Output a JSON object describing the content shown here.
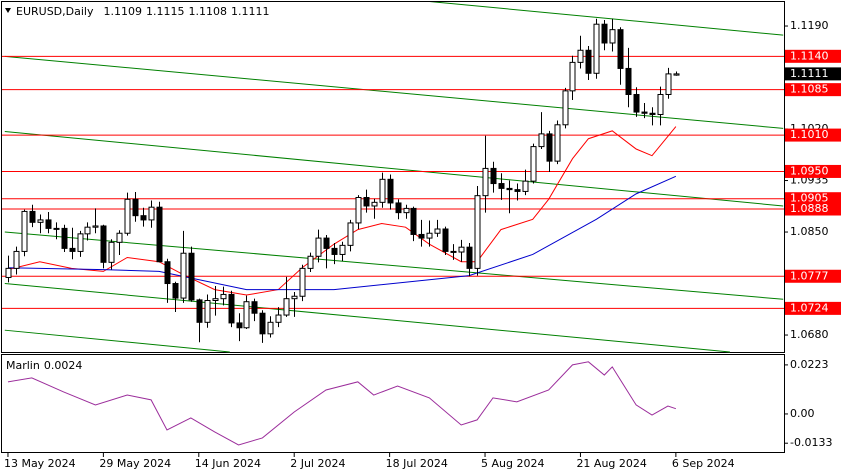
{
  "chart_data": [
    {
      "type": "candlestick",
      "title": "EURUSD,Daily",
      "categories": [
        "13 May 2024",
        null,
        null,
        null,
        null,
        null,
        null,
        null,
        null,
        null,
        null,
        null,
        "29 May 2024",
        null,
        null,
        null,
        null,
        null,
        null,
        null,
        null,
        null,
        null,
        null,
        "14 Jun 2024",
        null,
        null,
        null,
        null,
        null,
        null,
        null,
        null,
        null,
        null,
        null,
        "2 Jul 2024",
        null,
        null,
        null,
        null,
        null,
        null,
        null,
        null,
        null,
        null,
        null,
        "18 Jul 2024",
        null,
        null,
        null,
        null,
        null,
        null,
        null,
        null,
        null,
        null,
        null,
        "5 Aug 2024",
        null,
        null,
        null,
        null,
        null,
        null,
        null,
        null,
        null,
        null,
        null,
        "21 Aug 2024",
        null,
        null,
        null,
        null,
        null,
        null,
        null,
        null,
        null,
        null,
        null,
        "6 Sep 2024"
      ],
      "open": [
        1.0775,
        1.079,
        1.0818,
        1.0884,
        1.0866,
        1.087,
        1.0856,
        1.0856,
        1.0823,
        1.0818,
        1.0847,
        1.0858,
        1.086,
        1.08,
        1.0833,
        1.0848,
        1.0904,
        1.0877,
        1.087,
        1.0891,
        1.0801,
        1.0765,
        1.0741,
        1.0815,
        1.0738,
        1.0701,
        1.0737,
        1.074,
        1.0747,
        1.07,
        1.0692,
        1.0735,
        1.0716,
        1.0682,
        1.0701,
        1.0713,
        1.074,
        1.0744,
        1.079,
        1.081,
        1.084,
        1.0823,
        1.0813,
        1.0828,
        1.0865,
        1.0907,
        1.0893,
        1.0899,
        1.0937,
        1.0898,
        1.0882,
        1.0889,
        1.0846,
        1.084,
        1.0848,
        1.0855,
        1.0818,
        1.0817,
        1.0825,
        1.079,
        1.091,
        1.0955,
        1.093,
        1.0922,
        1.092,
        1.0917,
        1.0934,
        1.0991,
        1.1012,
        1.0967,
        1.1027,
        1.1083,
        1.113,
        1.115,
        1.1112,
        1.1193,
        1.1162,
        1.1184,
        1.112,
        1.1077,
        1.1048,
        1.1046,
        1.1044,
        1.1077,
        1.1109
      ],
      "high": [
        1.0811,
        1.0826,
        1.0887,
        1.0895,
        1.0879,
        1.0883,
        1.0866,
        1.0862,
        1.0857,
        1.0852,
        1.0866,
        1.0889,
        1.0862,
        1.0838,
        1.0853,
        1.0915,
        1.0916,
        1.089,
        1.0902,
        1.09,
        1.0806,
        1.0768,
        1.0852,
        1.0826,
        1.074,
        1.0747,
        1.0761,
        1.076,
        1.0753,
        1.0716,
        1.0745,
        1.074,
        1.0721,
        1.0711,
        1.0726,
        1.0776,
        1.0751,
        1.0796,
        1.0816,
        1.0854,
        1.0845,
        1.0832,
        1.0834,
        1.087,
        1.0911,
        1.092,
        1.0905,
        1.0948,
        1.0945,
        1.0904,
        1.0895,
        1.0892,
        1.087,
        1.0869,
        1.087,
        1.0859,
        1.083,
        1.0837,
        1.0832,
        1.0926,
        1.1009,
        1.0966,
        1.0947,
        1.0935,
        1.093,
        1.0953,
        1.0996,
        1.1048,
        1.1017,
        1.1034,
        1.1088,
        1.1141,
        1.1174,
        1.1157,
        1.1202,
        1.12,
        1.1202,
        1.1188,
        1.1154,
        1.1089,
        1.1063,
        1.1056,
        1.109,
        1.1121,
        1.1115
      ],
      "low": [
        1.0767,
        1.078,
        1.081,
        1.0858,
        1.0848,
        1.0848,
        1.0838,
        1.0817,
        1.0805,
        1.0809,
        1.0836,
        1.0848,
        1.079,
        1.0788,
        1.0812,
        1.0844,
        1.0867,
        1.0859,
        1.0857,
        1.08,
        1.0733,
        1.0718,
        1.0733,
        1.0735,
        1.0668,
        1.0692,
        1.0712,
        1.0729,
        1.0693,
        1.067,
        1.069,
        1.0703,
        1.0667,
        1.0676,
        1.0693,
        1.071,
        1.071,
        1.0736,
        1.0784,
        1.08,
        1.079,
        1.0797,
        1.0802,
        1.0818,
        1.0855,
        1.0882,
        1.0872,
        1.089,
        1.0887,
        1.0871,
        1.0872,
        1.0835,
        1.0826,
        1.0826,
        1.0842,
        1.0812,
        1.0804,
        1.0801,
        1.0777,
        1.0778,
        1.0882,
        1.0915,
        1.0903,
        1.0881,
        1.0902,
        1.0911,
        1.093,
        1.0987,
        1.0949,
        1.0962,
        1.1021,
        1.1068,
        1.112,
        1.1101,
        1.1103,
        1.115,
        1.1148,
        1.1093,
        1.1056,
        1.104,
        1.1038,
        1.1026,
        1.1026,
        1.107,
        1.1108
      ],
      "close": [
        1.079,
        1.0818,
        1.0884,
        1.0866,
        1.087,
        1.0856,
        1.0856,
        1.0823,
        1.0818,
        1.0847,
        1.0858,
        1.086,
        1.08,
        1.0833,
        1.0848,
        1.0904,
        1.0877,
        1.087,
        1.0891,
        1.0801,
        1.0765,
        1.0741,
        1.0815,
        1.0738,
        1.0701,
        1.0737,
        1.074,
        1.0747,
        1.07,
        1.0692,
        1.0735,
        1.0716,
        1.0682,
        1.0701,
        1.0713,
        1.074,
        1.0744,
        1.079,
        1.081,
        1.084,
        1.0823,
        1.0813,
        1.0828,
        1.0865,
        1.0907,
        1.0893,
        1.0899,
        1.0937,
        1.0898,
        1.0882,
        1.0889,
        1.0846,
        1.084,
        1.0848,
        1.0855,
        1.0818,
        1.0817,
        1.0825,
        1.079,
        1.091,
        1.0955,
        1.093,
        1.0922,
        1.092,
        1.0917,
        1.0934,
        1.0991,
        1.1012,
        1.0967,
        1.1027,
        1.1083,
        1.113,
        1.115,
        1.1112,
        1.1193,
        1.1162,
        1.1184,
        1.112,
        1.1077,
        1.1048,
        1.1046,
        1.1044,
        1.1077,
        1.1111,
        1.1111
      ],
      "color_up": "#ffffff",
      "color_down": "#000000",
      "xlim": [
        -0.75,
        97.6
      ],
      "ylim": [
        1.0652,
        1.1228
      ],
      "yticks": [
        {
          "value": 1.119,
          "label": "1.1190"
        },
        {
          "value": 1.102,
          "label": "1.1020"
        },
        1.0935,
        {
          "value": 1.085,
          "label": "1.0850"
        },
        {
          "value": 1.068,
          "label": "1.0680"
        }
      ],
      "levels": {
        "color": "#ff0000",
        "values": [
          1.114,
          1.1085,
          1.101,
          1.095,
          1.0905,
          1.0888,
          1.0777,
          1.0724
        ],
        "value_labels": [
          "1.1140",
          "1.1085",
          "1.1010",
          "1.0950",
          "1.0905",
          "1.0888",
          "1.0777",
          "1.0724"
        ]
      },
      "moving_averages": [
        {
          "color": "#ff0000",
          "x": [
            0,
            4,
            8,
            12,
            15,
            19,
            22,
            26,
            30,
            34,
            37,
            41,
            44,
            47,
            50,
            53,
            57,
            59,
            62,
            66,
            68,
            71,
            73,
            76,
            79,
            81,
            84
          ],
          "values": [
            1.0788,
            1.0801,
            1.079,
            1.0785,
            1.0808,
            1.0801,
            1.078,
            1.0755,
            1.0746,
            1.0755,
            1.0791,
            1.083,
            1.0854,
            1.0864,
            1.0858,
            1.083,
            1.0801,
            1.0801,
            1.0854,
            1.0871,
            1.0904,
            1.0971,
            1.1004,
            1.1017,
            1.0987,
            1.0976,
            1.1024
          ]
        },
        {
          "color": "#0000cd",
          "x": [
            0,
            12,
            19,
            30,
            41,
            58,
            66,
            74,
            79,
            84
          ],
          "values": [
            1.0791,
            1.0788,
            1.0785,
            1.0755,
            1.0755,
            1.0778,
            1.0813,
            1.0871,
            1.0913,
            1.0942
          ]
        }
      ],
      "trendlines": {
        "color": "#008000",
        "lines": [
          {
            "x": [
              51.8,
              97.5
            ],
            "values": [
              1.1232,
              1.1175
            ]
          },
          {
            "x": [
              -0.4,
              97.5
            ],
            "values": [
              1.114,
              1.1021
            ]
          },
          {
            "x": [
              -0.4,
              97.5
            ],
            "values": [
              1.1016,
              1.0893
            ]
          },
          {
            "x": [
              -0.4,
              97.5
            ],
            "values": [
              1.085,
              1.0739
            ]
          },
          {
            "x": [
              -0.4,
              90.8
            ],
            "values": [
              1.0765,
              1.0652
            ]
          },
          {
            "x": [
              -0.4,
              27.9
            ],
            "values": [
              1.0688,
              1.0652
            ]
          }
        ]
      }
    },
    {
      "type": "line",
      "title": "Marlin",
      "current_value": 0.0024,
      "color": "#9b2d9b",
      "x": [
        0,
        3,
        7,
        11,
        15,
        18,
        20,
        23,
        26,
        29,
        32,
        36,
        40,
        44,
        46,
        49,
        53,
        57,
        59,
        61,
        64,
        68,
        71,
        73,
        75,
        76,
        79,
        81,
        83,
        84
      ],
      "values": [
        0.0146,
        0.0164,
        0.01,
        0.0041,
        0.0086,
        0.0064,
        -0.0073,
        -0.0018,
        -0.0082,
        -0.0141,
        -0.0109,
        0.0009,
        0.0109,
        0.0146,
        0.0086,
        0.0127,
        0.0073,
        -0.005,
        -0.0027,
        0.0073,
        0.0055,
        0.0109,
        0.0223,
        0.0237,
        0.0177,
        0.0214,
        0.0041,
        -0.0005,
        0.0036,
        0.0024
      ],
      "xlim": [
        -0.75,
        97.6
      ],
      "ylim": [
        -0.0173,
        0.0268
      ],
      "yticks": [
        0.0223,
        {
          "value": 0,
          "label": "0.00"
        },
        -0.0133
      ]
    }
  ]
}
